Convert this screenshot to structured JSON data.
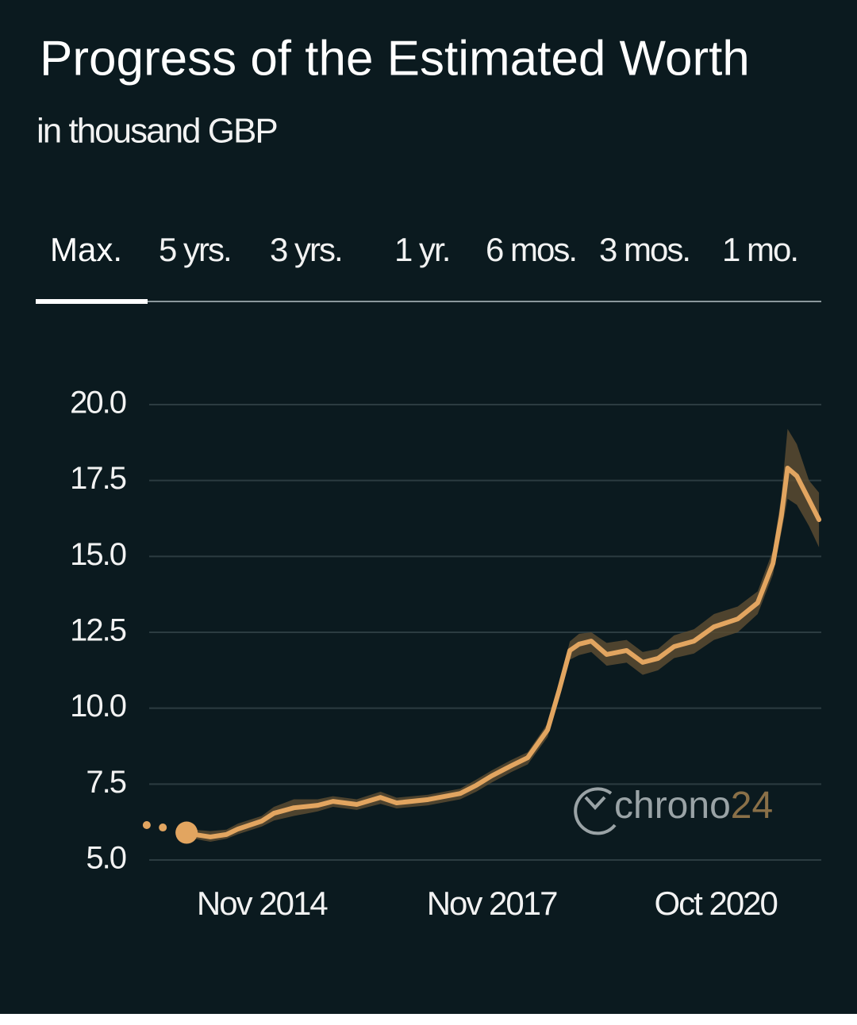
{
  "chart_data": {
    "type": "line",
    "title": "Progress of the Estimated Worth",
    "subtitle": "in thousand GBP",
    "tabs": [
      "Max.",
      "5 yrs.",
      "3 yrs.",
      "1 yr.",
      "6 mos.",
      "3 mos.",
      "1 mo."
    ],
    "active_tab": 0,
    "x": [
      2013.95,
      2014.16,
      2014.37,
      2014.52,
      2014.83,
      2014.99,
      2015.25,
      2015.56,
      2015.76,
      2016.07,
      2016.38,
      2016.59,
      2017.0,
      2017.42,
      2017.63,
      2017.83,
      2018.09,
      2018.3,
      2018.56,
      2018.71,
      2018.85,
      2018.97,
      2019.13,
      2019.33,
      2019.59,
      2019.8,
      2020.0,
      2020.21,
      2020.47,
      2020.73,
      2021.04,
      2021.3,
      2021.5,
      2021.61,
      2021.69,
      2021.81,
      2021.97,
      2022.1
    ],
    "values": [
      5.84,
      5.76,
      5.84,
      6.02,
      6.28,
      6.54,
      6.72,
      6.8,
      6.93,
      6.83,
      7.06,
      6.88,
      6.99,
      7.19,
      7.46,
      7.77,
      8.11,
      8.37,
      9.29,
      10.59,
      11.9,
      12.11,
      12.21,
      11.77,
      11.9,
      11.51,
      11.64,
      12.03,
      12.21,
      12.68,
      12.94,
      13.47,
      14.77,
      16.34,
      17.91,
      17.65,
      16.86,
      16.21
    ],
    "upper": [
      6.0,
      5.95,
      6.0,
      6.2,
      6.45,
      6.75,
      7.0,
      7.0,
      7.1,
      7.0,
      7.25,
      7.05,
      7.15,
      7.35,
      7.65,
      7.95,
      8.3,
      8.55,
      9.5,
      10.8,
      12.2,
      12.45,
      12.5,
      12.15,
      12.25,
      11.85,
      11.95,
      12.4,
      12.6,
      13.1,
      13.35,
      13.85,
      15.2,
      17.0,
      19.2,
      18.7,
      17.5,
      17.1
    ],
    "lower": [
      5.7,
      5.6,
      5.7,
      5.85,
      6.1,
      6.3,
      6.45,
      6.6,
      6.75,
      6.65,
      6.85,
      6.7,
      6.8,
      7.0,
      7.25,
      7.55,
      7.9,
      8.15,
      9.05,
      10.35,
      11.6,
      11.75,
      11.85,
      11.4,
      11.5,
      11.1,
      11.25,
      11.65,
      11.8,
      12.25,
      12.5,
      13.1,
      14.4,
      15.8,
      16.9,
      16.7,
      16.0,
      15.3
    ],
    "markers": {
      "x": [
        2013.33,
        2013.54,
        2013.85
      ],
      "values": [
        6.15,
        6.07,
        5.9
      ]
    },
    "color": "#e2a560",
    "band_color": "#5b4b31",
    "xlim": [
      2013.3,
      2022.13
    ],
    "xticks": [
      {
        "value": 2014.83,
        "label": "Nov 2014"
      },
      {
        "value": 2017.83,
        "label": "Nov 2017"
      },
      {
        "value": 2020.75,
        "label": "Oct 2020"
      }
    ],
    "ylim": [
      5,
      20
    ],
    "yticks": [
      {
        "value": 5,
        "label": "5.0"
      },
      {
        "value": 7.5,
        "label": "7.5"
      },
      {
        "value": 10,
        "label": "10.0"
      },
      {
        "value": 12.5,
        "label": "12.5"
      },
      {
        "value": 15,
        "label": "15.0"
      },
      {
        "value": 17.5,
        "label": "17.5"
      },
      {
        "value": 20,
        "label": "20.0"
      }
    ],
    "grid": true,
    "watermark": {
      "text": "chrono",
      "suffix": "24"
    }
  }
}
